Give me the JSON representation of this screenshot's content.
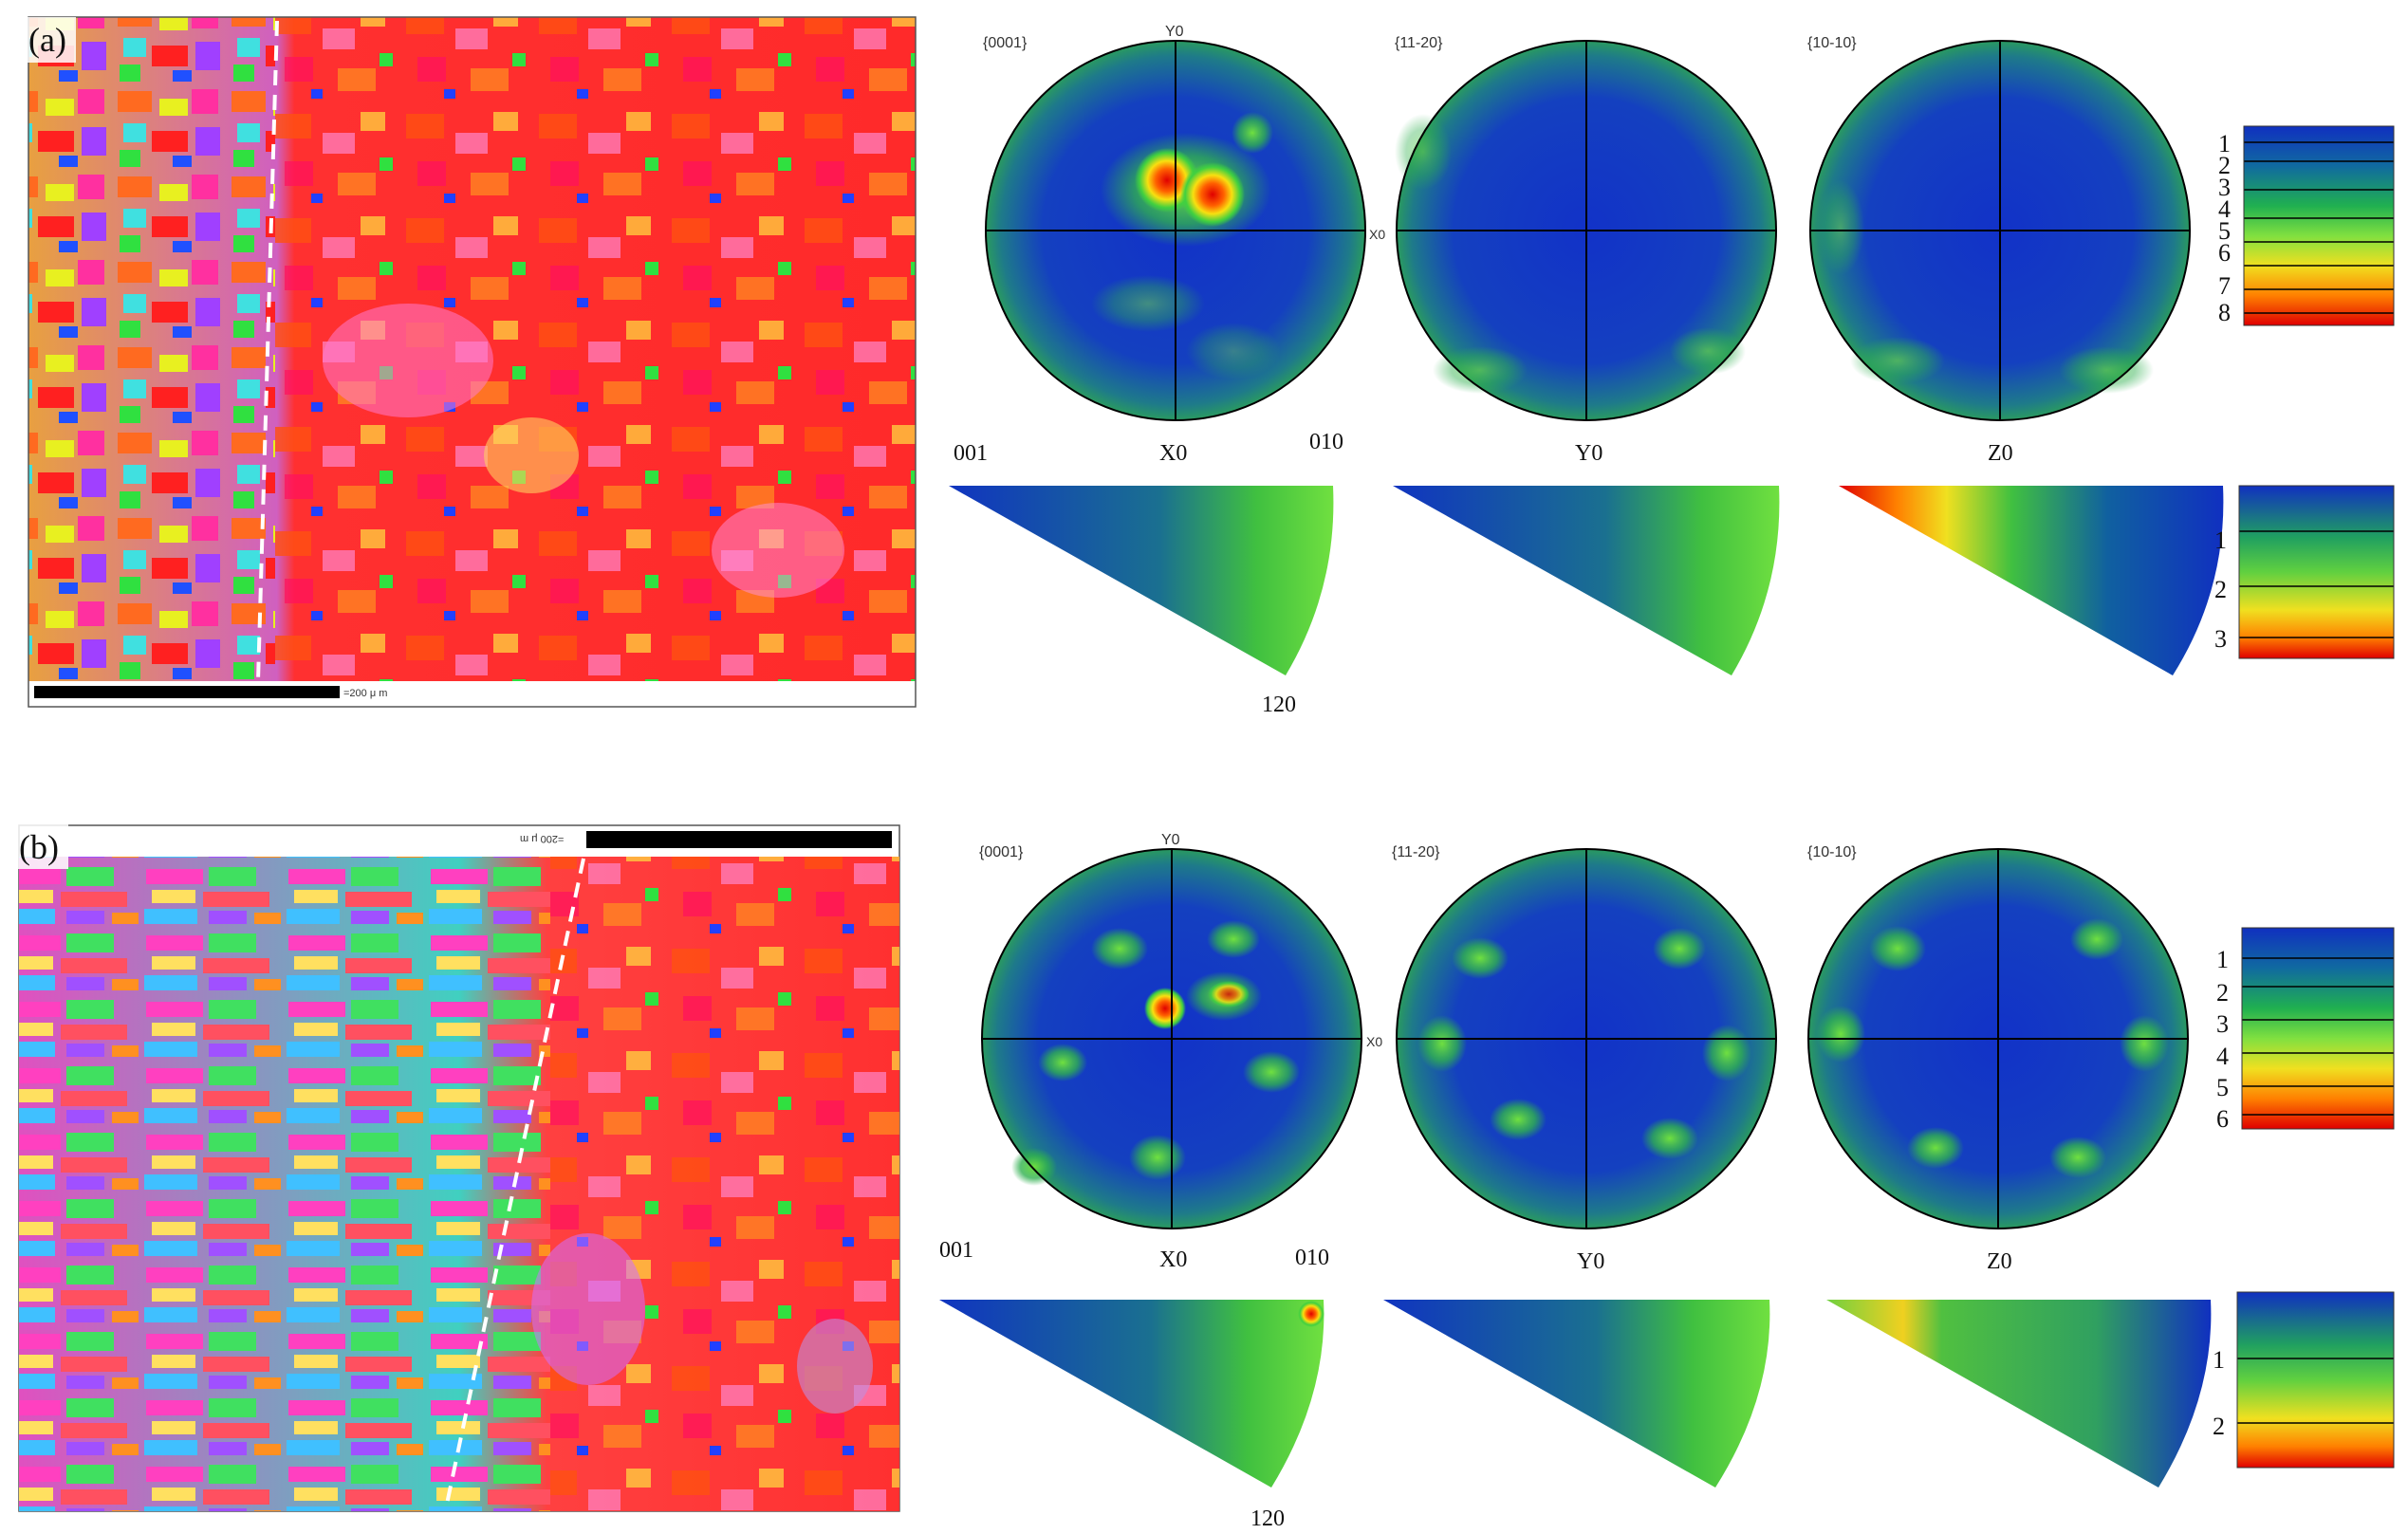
{
  "panels": [
    {
      "label": "(a)",
      "scalebar_text": "=200 μ m",
      "pf_titles": [
        "{0001}",
        "{11-20}",
        "{10-10}"
      ],
      "pf_axis_top": "Y0",
      "pf_axis_side": "X0",
      "ipf_labels": {
        "origin": "001",
        "corner": "010",
        "arc": "120",
        "ipf1": "X0",
        "ipf2": "Y0",
        "ipf3": "Z0"
      },
      "pf_legend": [
        "1",
        "2",
        "3",
        "4",
        "5",
        "6",
        "7",
        "8"
      ],
      "ipf_legend": [
        "1",
        "2",
        "3"
      ]
    },
    {
      "label": "(b)",
      "scalebar_text": "=200 μ m",
      "pf_titles": [
        "{0001}",
        "{11-20}",
        "{10-10}"
      ],
      "pf_axis_top": "Y0",
      "pf_axis_side": "X0",
      "ipf_labels": {
        "origin": "001",
        "corner": "010",
        "arc": "120",
        "ipf1": "X0",
        "ipf2": "Y0",
        "ipf3": "Z0"
      },
      "pf_legend": [
        "1",
        "2",
        "3",
        "4",
        "5",
        "6"
      ],
      "ipf_legend": [
        "1",
        "2"
      ]
    }
  ],
  "colors": {
    "low": "#1030c8",
    "mid": "#30c040",
    "high": "#f8e010",
    "peak": "#e01010"
  }
}
